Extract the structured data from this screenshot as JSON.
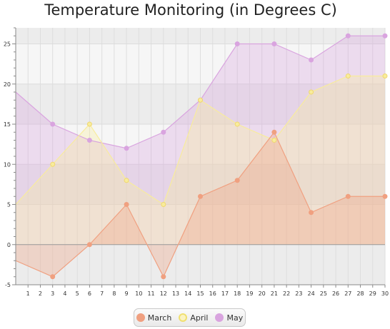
{
  "chart_data": {
    "type": "area",
    "title": "Temperature Monitoring (in Degrees C)",
    "xlabel": "",
    "ylabel": "",
    "xlim": [
      1,
      30
    ],
    "ylim": [
      -5,
      27
    ],
    "x_ticks": [
      1,
      2,
      3,
      4,
      5,
      6,
      7,
      8,
      9,
      10,
      11,
      12,
      13,
      14,
      15,
      16,
      17,
      18,
      19,
      20,
      21,
      22,
      23,
      24,
      25,
      26,
      27,
      28,
      29,
      30
    ],
    "y_ticks": [
      -5,
      0,
      5,
      10,
      15,
      20,
      25
    ],
    "grid": true,
    "legend_position": "bottom",
    "series": [
      {
        "name": "March",
        "color": "#f0a080",
        "points": [
          [
            0,
            -2
          ],
          [
            3,
            -4
          ],
          [
            6,
            0
          ],
          [
            9,
            5
          ],
          [
            12,
            -4
          ],
          [
            15,
            6
          ],
          [
            18,
            8
          ],
          [
            21,
            14
          ],
          [
            24,
            4
          ],
          [
            27,
            6
          ],
          [
            30,
            6
          ]
        ]
      },
      {
        "name": "April",
        "color": "#f8ec9c",
        "points": [
          [
            0,
            5
          ],
          [
            3,
            10
          ],
          [
            6,
            15
          ],
          [
            9,
            8
          ],
          [
            12,
            5
          ],
          [
            15,
            18
          ],
          [
            18,
            15
          ],
          [
            21,
            13
          ],
          [
            24,
            19
          ],
          [
            27,
            21
          ],
          [
            30,
            21
          ]
        ]
      },
      {
        "name": "May",
        "color": "#d9a4df",
        "points": [
          [
            0,
            19
          ],
          [
            3,
            15
          ],
          [
            6,
            13
          ],
          [
            9,
            12
          ],
          [
            12,
            14
          ],
          [
            15,
            18
          ],
          [
            18,
            25
          ],
          [
            21,
            25
          ],
          [
            24,
            23
          ],
          [
            27,
            26
          ],
          [
            30,
            26
          ]
        ]
      }
    ]
  }
}
